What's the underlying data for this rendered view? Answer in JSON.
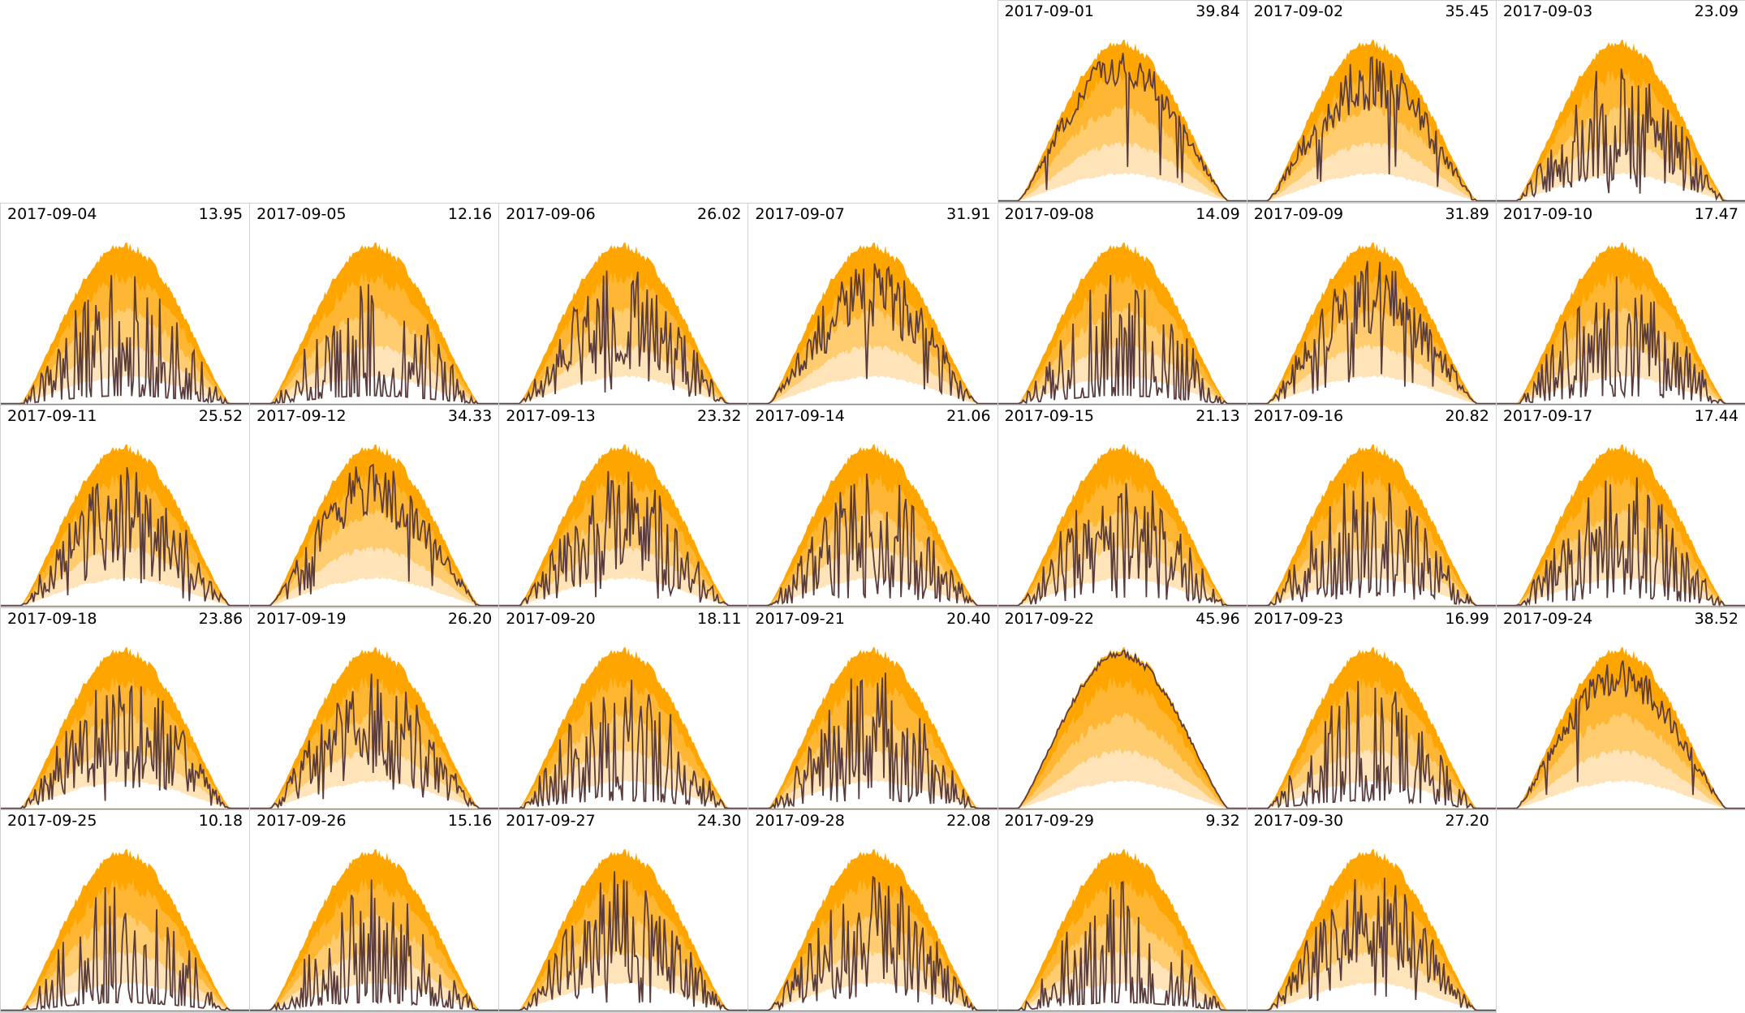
{
  "chart_data": {
    "type": "area",
    "title": "",
    "layout": "calendar grid, 7 columns, first day in column 5",
    "colors": {
      "band1": "#FFA500",
      "band2": "#FFB733",
      "band3": "#FFCC70",
      "band4": "#FFE4BA",
      "line": "#5a3c3c",
      "border": "#d0d0d0",
      "baseline": "#888888"
    },
    "days": [
      {
        "date": "2017-09-01",
        "value": "39.84"
      },
      {
        "date": "2017-09-02",
        "value": "35.45"
      },
      {
        "date": "2017-09-03",
        "value": "23.09"
      },
      {
        "date": "2017-09-04",
        "value": "13.95"
      },
      {
        "date": "2017-09-05",
        "value": "12.16"
      },
      {
        "date": "2017-09-06",
        "value": "26.02"
      },
      {
        "date": "2017-09-07",
        "value": "31.91"
      },
      {
        "date": "2017-09-08",
        "value": "14.09"
      },
      {
        "date": "2017-09-09",
        "value": "31.89"
      },
      {
        "date": "2017-09-10",
        "value": "17.47"
      },
      {
        "date": "2017-09-11",
        "value": "25.52"
      },
      {
        "date": "2017-09-12",
        "value": "34.33"
      },
      {
        "date": "2017-09-13",
        "value": "23.32"
      },
      {
        "date": "2017-09-14",
        "value": "21.06"
      },
      {
        "date": "2017-09-15",
        "value": "21.13"
      },
      {
        "date": "2017-09-16",
        "value": "20.82"
      },
      {
        "date": "2017-09-17",
        "value": "17.44"
      },
      {
        "date": "2017-09-18",
        "value": "23.86"
      },
      {
        "date": "2017-09-19",
        "value": "26.20"
      },
      {
        "date": "2017-09-20",
        "value": "18.11"
      },
      {
        "date": "2017-09-21",
        "value": "20.40"
      },
      {
        "date": "2017-09-22",
        "value": "45.96"
      },
      {
        "date": "2017-09-23",
        "value": "16.99"
      },
      {
        "date": "2017-09-24",
        "value": "38.52"
      },
      {
        "date": "2017-09-25",
        "value": "10.18"
      },
      {
        "date": "2017-09-26",
        "value": "15.16"
      },
      {
        "date": "2017-09-27",
        "value": "24.30"
      },
      {
        "date": "2017-09-28",
        "value": "22.08"
      },
      {
        "date": "2017-09-29",
        "value": "9.32"
      },
      {
        "date": "2017-09-30",
        "value": "27.20"
      }
    ]
  }
}
